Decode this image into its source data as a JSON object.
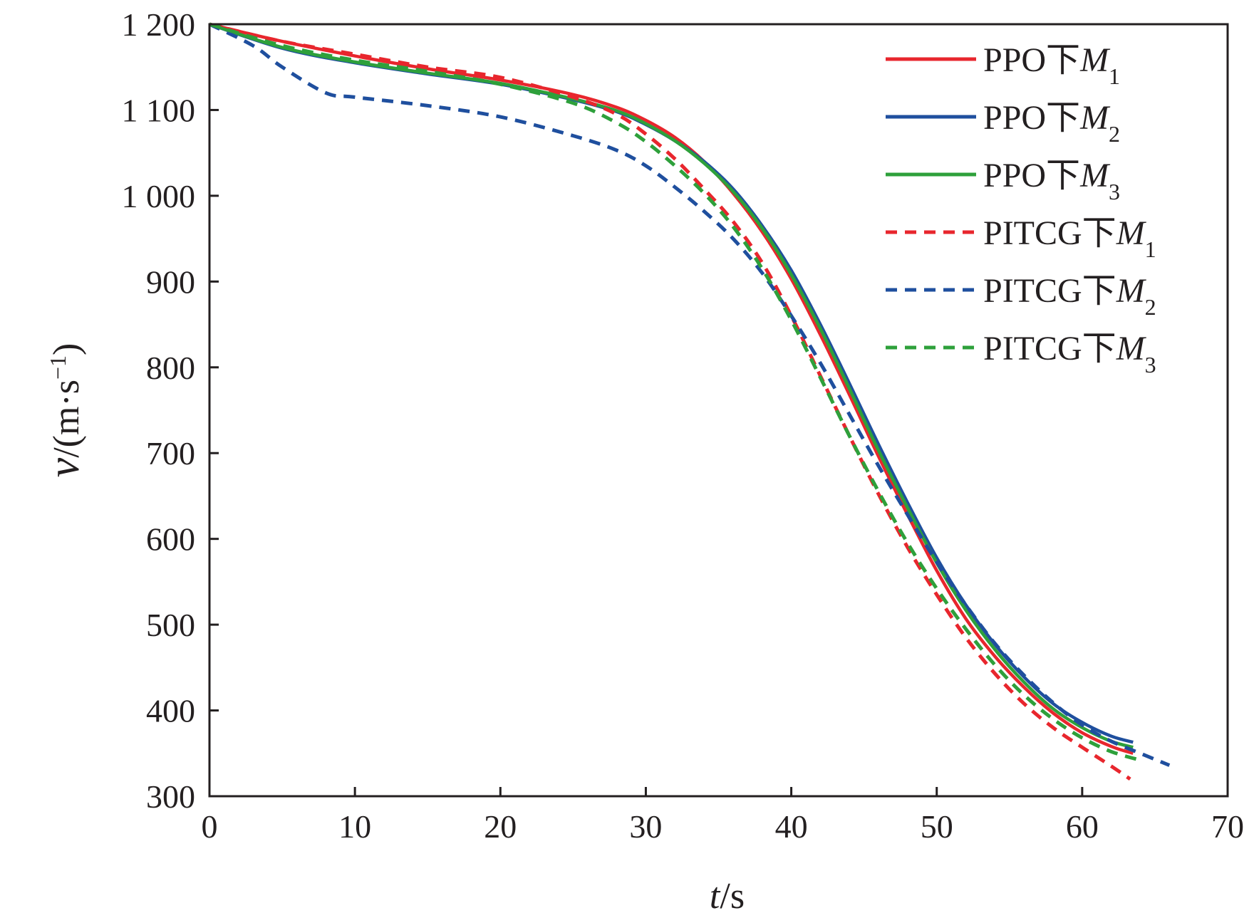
{
  "chart_data": {
    "type": "line",
    "xlabel": {
      "var": "t",
      "unit": "/s"
    },
    "ylabel": {
      "var": "v",
      "unit_prefix": "/(m·s",
      "unit_exp": "−1",
      "unit_suffix": ")"
    },
    "xlim": [
      0,
      70
    ],
    "ylim": [
      300,
      1200
    ],
    "xticks": [
      0,
      10,
      20,
      30,
      40,
      50,
      60,
      70
    ],
    "yticks": [
      300,
      400,
      500,
      600,
      700,
      800,
      900,
      1000,
      1100,
      1200
    ],
    "ytick_labels": [
      "300",
      "400",
      "500",
      "600",
      "700",
      "800",
      "900",
      "1 000",
      "1 100",
      "1 200"
    ],
    "xtick_labels": [
      "0",
      "10",
      "20",
      "30",
      "40",
      "50",
      "60",
      "70"
    ],
    "grid": false,
    "legend_position": "top-right",
    "series": [
      {
        "name": "PPO下M1",
        "label_prefix": "PPO下",
        "label_var": "M",
        "label_sub": "1",
        "color": "#e8262d",
        "dash": "solid",
        "x": [
          0,
          5,
          10,
          15,
          20,
          25,
          28,
          30,
          32,
          34,
          36,
          38,
          40,
          42,
          44,
          46,
          48,
          50,
          52,
          54,
          56,
          58,
          60,
          62,
          63.5
        ],
        "y": [
          1200,
          1180,
          1163,
          1148,
          1135,
          1118,
          1103,
          1088,
          1068,
          1040,
          1003,
          958,
          903,
          838,
          768,
          696,
          628,
          563,
          507,
          463,
          427,
          397,
          374,
          358,
          350
        ]
      },
      {
        "name": "PPO下M2",
        "label_prefix": "PPO下",
        "label_var": "M",
        "label_sub": "2",
        "color": "#1f4f9e",
        "dash": "solid",
        "x": [
          0,
          5,
          10,
          15,
          20,
          25,
          28,
          30,
          32,
          34,
          36,
          38,
          40,
          42,
          44,
          46,
          48,
          50,
          52,
          54,
          56,
          58,
          60,
          62,
          63.5
        ],
        "y": [
          1200,
          1172,
          1155,
          1142,
          1130,
          1112,
          1098,
          1083,
          1064,
          1040,
          1008,
          965,
          913,
          850,
          781,
          710,
          642,
          578,
          523,
          477,
          439,
          408,
          386,
          370,
          363
        ]
      },
      {
        "name": "PPO下M3",
        "label_prefix": "PPO下",
        "label_var": "M",
        "label_sub": "3",
        "color": "#2ea03b",
        "dash": "solid",
        "x": [
          0,
          5,
          10,
          15,
          20,
          25,
          28,
          30,
          32,
          34,
          36,
          38,
          40,
          42,
          44,
          46,
          48,
          50,
          52,
          54,
          56,
          58,
          60,
          62,
          63.5
        ],
        "y": [
          1200,
          1173,
          1156,
          1143,
          1131,
          1113,
          1099,
          1084,
          1064,
          1038,
          1005,
          962,
          908,
          845,
          775,
          703,
          636,
          572,
          517,
          471,
          433,
          402,
          380,
          364,
          357
        ]
      },
      {
        "name": "PITCG下M1",
        "label_prefix": "PITCG下",
        "label_var": "M",
        "label_sub": "1",
        "color": "#e8262d",
        "dash": "dashed",
        "x": [
          0,
          5,
          10,
          15,
          20,
          25,
          28,
          30,
          32,
          34,
          36,
          38,
          40,
          42,
          44,
          46,
          48,
          50,
          52,
          54,
          56,
          58,
          60,
          62,
          63.3
        ],
        "y": [
          1200,
          1180,
          1165,
          1150,
          1138,
          1115,
          1095,
          1072,
          1043,
          1008,
          970,
          922,
          860,
          790,
          720,
          652,
          590,
          535,
          485,
          443,
          408,
          380,
          357,
          335,
          320
        ]
      },
      {
        "name": "PITCG下M2",
        "label_prefix": "PITCG下",
        "label_var": "M",
        "label_sub": "2",
        "color": "#1f4f9e",
        "dash": "dashed",
        "x": [
          0,
          3,
          5,
          8,
          10,
          15,
          20,
          25,
          28,
          30,
          32,
          34,
          36,
          38,
          40,
          42,
          44,
          46,
          48,
          50,
          52,
          54,
          56,
          58,
          60,
          62,
          64,
          66
        ],
        "y": [
          1200,
          1175,
          1150,
          1120,
          1115,
          1105,
          1092,
          1070,
          1053,
          1035,
          1010,
          982,
          950,
          910,
          860,
          805,
          745,
          685,
          628,
          573,
          523,
          478,
          441,
          409,
          383,
          364,
          350,
          336
        ]
      },
      {
        "name": "PITCG下M3",
        "label_prefix": "PITCG下",
        "label_var": "M",
        "label_sub": "3",
        "color": "#2ea03b",
        "dash": "dashed",
        "x": [
          0,
          5,
          10,
          15,
          20,
          25,
          28,
          30,
          32,
          34,
          36,
          38,
          40,
          42,
          44,
          46,
          48,
          50,
          52,
          54,
          56,
          58,
          60,
          62,
          64
        ],
        "y": [
          1200,
          1175,
          1158,
          1145,
          1130,
          1108,
          1085,
          1063,
          1035,
          1003,
          964,
          915,
          855,
          788,
          720,
          655,
          595,
          542,
          495,
          453,
          418,
          390,
          368,
          352,
          342
        ]
      }
    ]
  }
}
